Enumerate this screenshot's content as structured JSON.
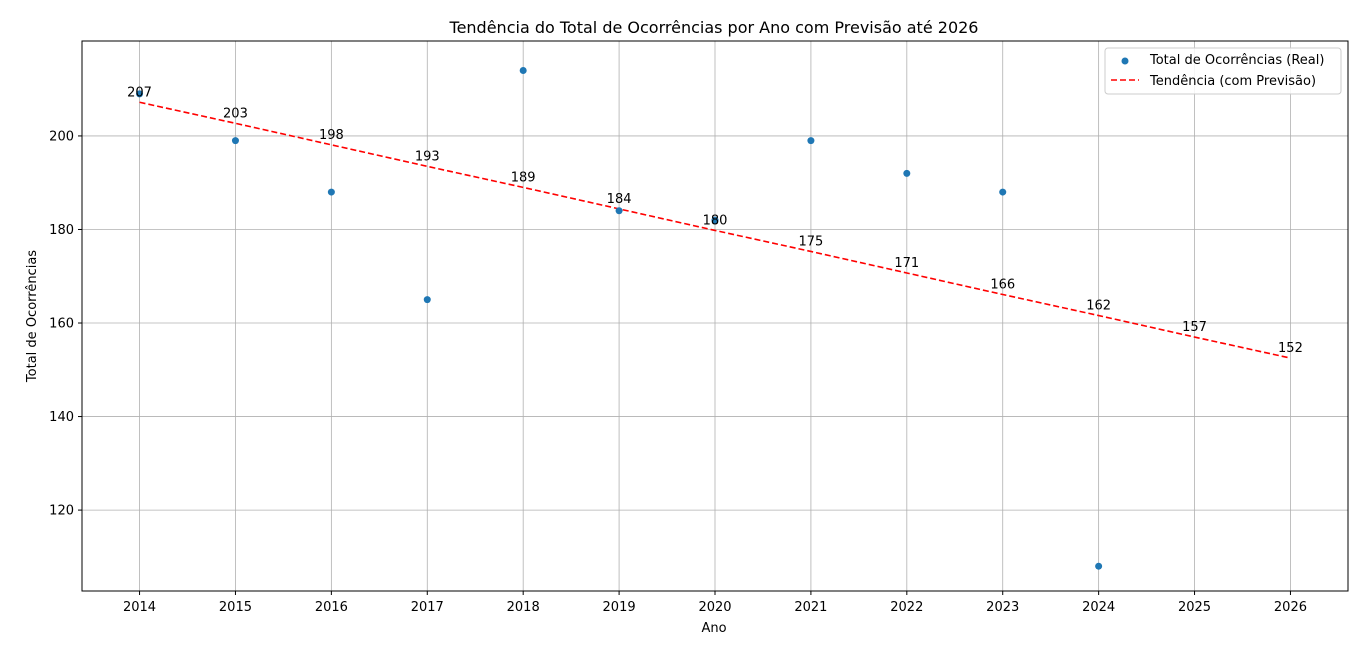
{
  "chart_data": {
    "type": "scatter",
    "title": "Tendência do Total de Ocorrências por Ano com Previsão até 2026",
    "xlabel": "Ano",
    "ylabel": "Total de Ocorrências",
    "xlim": [
      2013.4,
      2026.6
    ],
    "ylim": [
      102.7,
      220.3
    ],
    "x_ticks": [
      "2014",
      "2015",
      "2016",
      "2017",
      "2018",
      "2019",
      "2020",
      "2021",
      "2022",
      "2023",
      "2024",
      "2025",
      "2026"
    ],
    "y_ticks": [
      "120",
      "140",
      "160",
      "180",
      "200"
    ],
    "grid": true,
    "legend_position": "top-right",
    "series": [
      {
        "name": "Total de Ocorrências (Real)",
        "kind": "scatter",
        "color": "#1f77b4",
        "x": [
          2014,
          2015,
          2016,
          2017,
          2018,
          2019,
          2020,
          2021,
          2022,
          2023,
          2024
        ],
        "y": [
          209,
          199,
          188,
          165,
          214,
          184,
          182,
          199,
          192,
          188,
          108
        ]
      },
      {
        "name": "Tendência (com Previsão)",
        "kind": "line",
        "style": "dashed",
        "color": "#ff0000",
        "x": [
          2014,
          2015,
          2016,
          2017,
          2018,
          2019,
          2020,
          2021,
          2022,
          2023,
          2024,
          2025,
          2026
        ],
        "y": [
          207.2,
          202.7,
          198.1,
          193.5,
          189.0,
          184.4,
          179.8,
          175.3,
          170.7,
          166.1,
          161.6,
          157.0,
          152.5
        ],
        "labels": [
          "207",
          "203",
          "198",
          "193",
          "189",
          "184",
          "180",
          "175",
          "171",
          "166",
          "162",
          "157",
          "152"
        ]
      }
    ]
  }
}
